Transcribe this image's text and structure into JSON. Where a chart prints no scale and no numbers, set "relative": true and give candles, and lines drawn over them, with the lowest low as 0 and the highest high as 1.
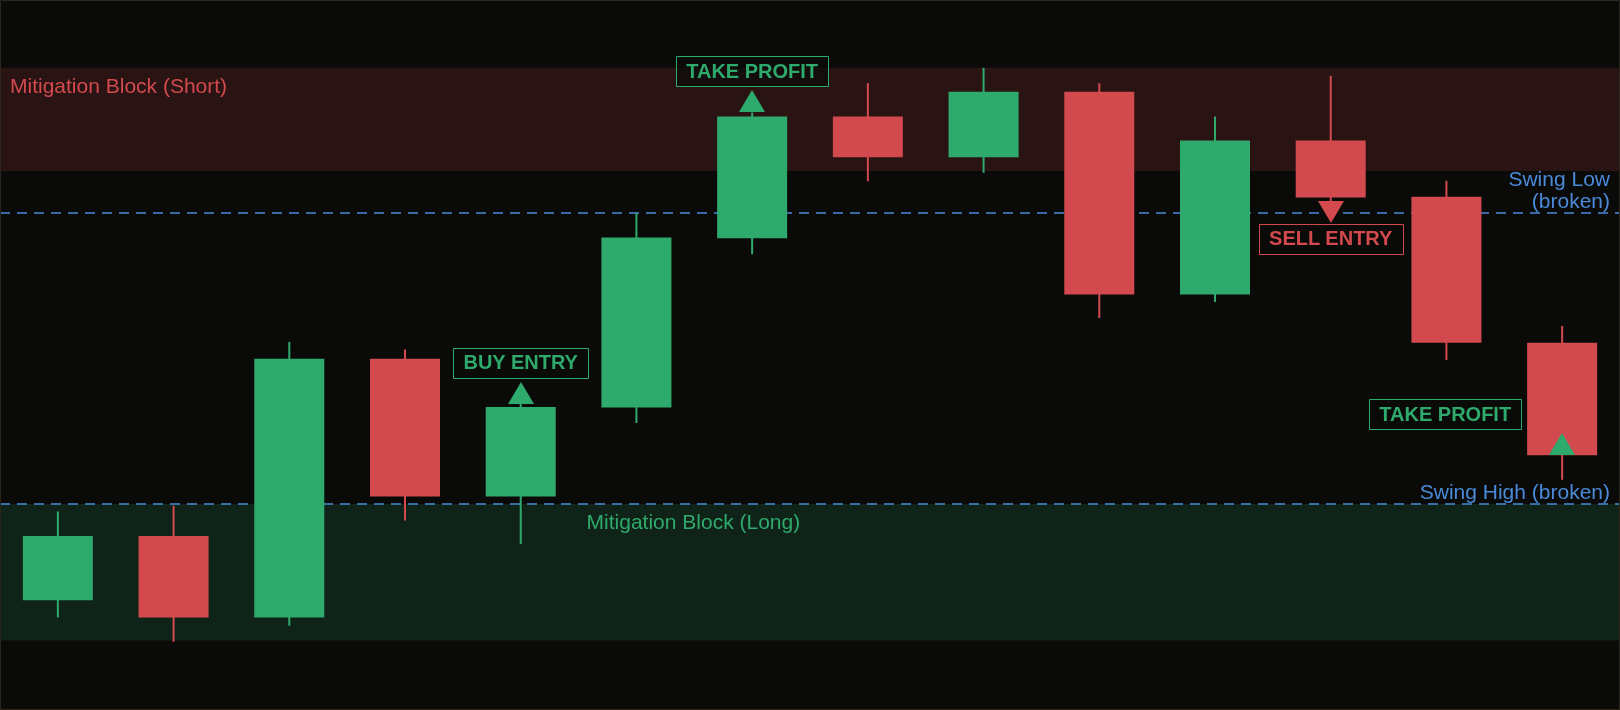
{
  "chart_data": {
    "type": "candlestick",
    "relative": true,
    "categories": [
      null,
      null,
      null,
      null,
      null,
      null,
      null,
      null,
      null,
      null,
      null,
      null,
      null,
      null
    ],
    "ohlc": [
      [
        0.072,
        0.227,
        0.042,
        0.184
      ],
      [
        0.184,
        0.237,
        0.0,
        0.042
      ],
      [
        0.042,
        0.522,
        0.028,
        0.493
      ],
      [
        0.493,
        0.509,
        0.211,
        0.253
      ],
      [
        0.253,
        0.415,
        0.17,
        0.409
      ],
      [
        0.408,
        0.747,
        0.381,
        0.704
      ],
      [
        0.703,
        0.922,
        0.675,
        0.915
      ],
      [
        0.915,
        0.973,
        0.802,
        0.844
      ],
      [
        0.844,
        1.0,
        0.817,
        0.958
      ],
      [
        0.958,
        0.973,
        0.564,
        0.605
      ],
      [
        0.605,
        0.915,
        0.592,
        0.873
      ],
      [
        0.873,
        0.986,
        0.768,
        0.774
      ],
      [
        0.775,
        0.803,
        0.491,
        0.521
      ],
      [
        0.521,
        0.55,
        0.282,
        0.325
      ]
    ],
    "colors": [
      "#2eaa6c",
      "#d24a4d",
      "#2eaa6c",
      "#d24a4d",
      "#2eaa6c",
      "#2eaa6c",
      "#2eaa6c",
      "#d24a4d",
      "#2eaa6c",
      "#d24a4d",
      "#2eaa6c",
      "#d24a4d",
      "#d24a4d",
      "#d24a4d"
    ],
    "bands": [
      {
        "axis": "y",
        "from": 0.82,
        "to": 1.0,
        "label": "Mitigation Block (Short)",
        "color": "#d24a4d"
      },
      {
        "axis": "y",
        "from": 0.002,
        "to": 0.24,
        "label": "Mitigation Block (Long)",
        "color": "#2eaa6c"
      }
    ],
    "ref_lines": [
      {
        "axis": "y",
        "value": 0.747,
        "label": "Swing Low (broken)",
        "color": "#4a8ad8",
        "line_style": "dashed"
      },
      {
        "axis": "y",
        "value": 0.24,
        "label": "Swing High (broken)",
        "color": "#4a8ad8",
        "line_style": "dashed"
      }
    ],
    "annotations": [
      {
        "text": "TAKE PROFIT",
        "y": 0.922
      },
      {
        "text": "BUY ENTRY",
        "y": 0.415
      },
      {
        "text": "SELL ENTRY",
        "y": 0.768
      },
      "TAKE PROFIT"
    ]
  }
}
